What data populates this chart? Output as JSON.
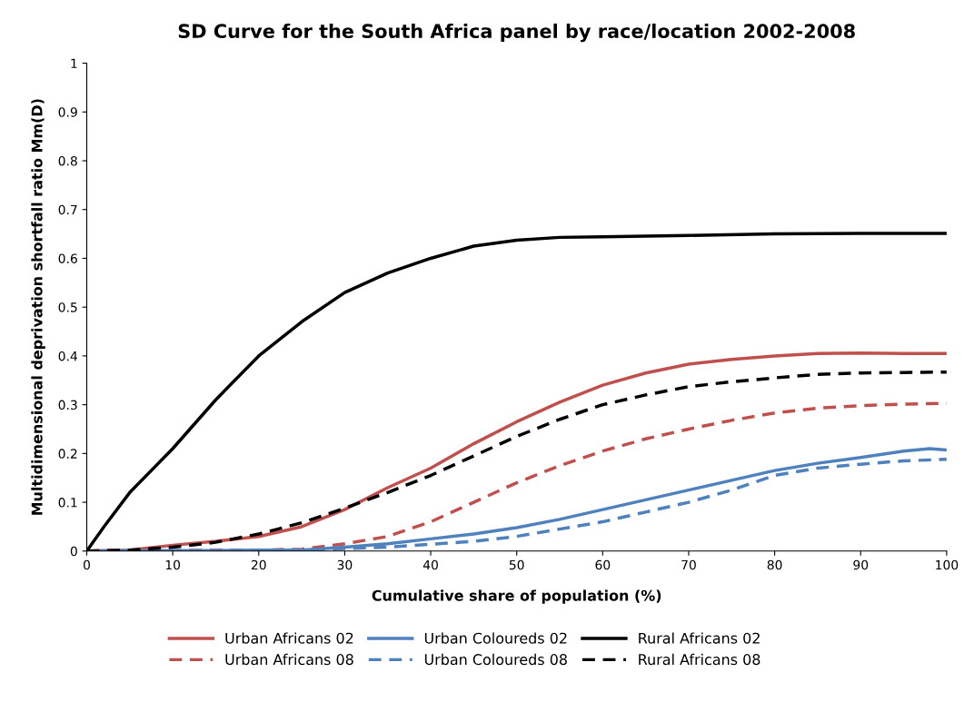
{
  "chart_data": {
    "type": "line",
    "title": "SD Curve for the South Africa panel by race/location 2002-2008",
    "xlabel": "Cumulative share of population (%)",
    "ylabel": "Multidimensional deprivation shortfall ratio Mm(D)",
    "xlim": [
      0,
      100
    ],
    "xticks": [
      0,
      10,
      20,
      30,
      40,
      50,
      60,
      70,
      80,
      90,
      100
    ],
    "ylim": [
      0,
      1
    ],
    "yticks": [
      0,
      0.1,
      0.2,
      0.3,
      0.4,
      0.5,
      0.6,
      0.7,
      0.8,
      0.9,
      1
    ],
    "grid": false,
    "legend": "bottom",
    "marker": "none",
    "series": [
      {
        "name": "Urban Africans 02",
        "color": "#c0504d",
        "line_style": "solid",
        "x": [
          0,
          5,
          10,
          15,
          20,
          25,
          30,
          35,
          40,
          45,
          50,
          55,
          60,
          65,
          70,
          75,
          80,
          85,
          90,
          95,
          100
        ],
        "values": [
          0,
          0.002,
          0.012,
          0.02,
          0.03,
          0.05,
          0.085,
          0.13,
          0.17,
          0.22,
          0.265,
          0.305,
          0.34,
          0.365,
          0.383,
          0.393,
          0.4,
          0.405,
          0.406,
          0.405,
          0.405
        ]
      },
      {
        "name": "Urban Africans 08",
        "color": "#c0504d",
        "line_style": "dashed",
        "x": [
          0,
          5,
          10,
          15,
          20,
          25,
          30,
          35,
          40,
          45,
          50,
          55,
          60,
          65,
          70,
          75,
          80,
          85,
          90,
          95,
          100
        ],
        "values": [
          0,
          0.001,
          0.001,
          0.002,
          0.002,
          0.004,
          0.015,
          0.03,
          0.06,
          0.1,
          0.14,
          0.175,
          0.205,
          0.23,
          0.25,
          0.268,
          0.283,
          0.293,
          0.298,
          0.301,
          0.303
        ]
      },
      {
        "name": "Urban Coloureds 02",
        "color": "#4f81bd",
        "line_style": "solid",
        "x": [
          0,
          5,
          10,
          15,
          20,
          25,
          30,
          35,
          40,
          45,
          50,
          55,
          60,
          65,
          70,
          75,
          80,
          85,
          90,
          95,
          98,
          100
        ],
        "values": [
          0,
          0.001,
          0.001,
          0.001,
          0.002,
          0.002,
          0.008,
          0.015,
          0.025,
          0.035,
          0.048,
          0.065,
          0.085,
          0.105,
          0.125,
          0.145,
          0.165,
          0.18,
          0.192,
          0.205,
          0.21,
          0.207
        ]
      },
      {
        "name": "Urban Coloureds 08",
        "color": "#4f81bd",
        "line_style": "dashed",
        "x": [
          0,
          5,
          10,
          15,
          20,
          25,
          30,
          35,
          40,
          45,
          50,
          55,
          60,
          65,
          70,
          75,
          80,
          85,
          90,
          95,
          100
        ],
        "values": [
          0,
          0,
          0,
          0,
          0.001,
          0.001,
          0.005,
          0.008,
          0.014,
          0.02,
          0.03,
          0.045,
          0.06,
          0.08,
          0.1,
          0.125,
          0.155,
          0.17,
          0.178,
          0.185,
          0.188
        ]
      },
      {
        "name": "Rural Africans 02",
        "color": "#000000",
        "line_style": "solid",
        "x": [
          0,
          2,
          5,
          10,
          15,
          20,
          25,
          30,
          35,
          40,
          45,
          50,
          55,
          60,
          70,
          80,
          90,
          100
        ],
        "values": [
          0,
          0.05,
          0.12,
          0.21,
          0.31,
          0.4,
          0.47,
          0.53,
          0.57,
          0.6,
          0.625,
          0.637,
          0.643,
          0.644,
          0.647,
          0.65,
          0.651,
          0.651
        ]
      },
      {
        "name": "Rural Africans 08",
        "color": "#000000",
        "line_style": "dashed",
        "x": [
          0,
          5,
          10,
          15,
          20,
          25,
          30,
          35,
          40,
          45,
          50,
          55,
          60,
          65,
          70,
          75,
          80,
          85,
          90,
          95,
          100
        ],
        "values": [
          0,
          0.002,
          0.008,
          0.018,
          0.035,
          0.058,
          0.088,
          0.12,
          0.155,
          0.195,
          0.235,
          0.27,
          0.3,
          0.32,
          0.337,
          0.347,
          0.355,
          0.362,
          0.365,
          0.366,
          0.367
        ]
      }
    ]
  }
}
